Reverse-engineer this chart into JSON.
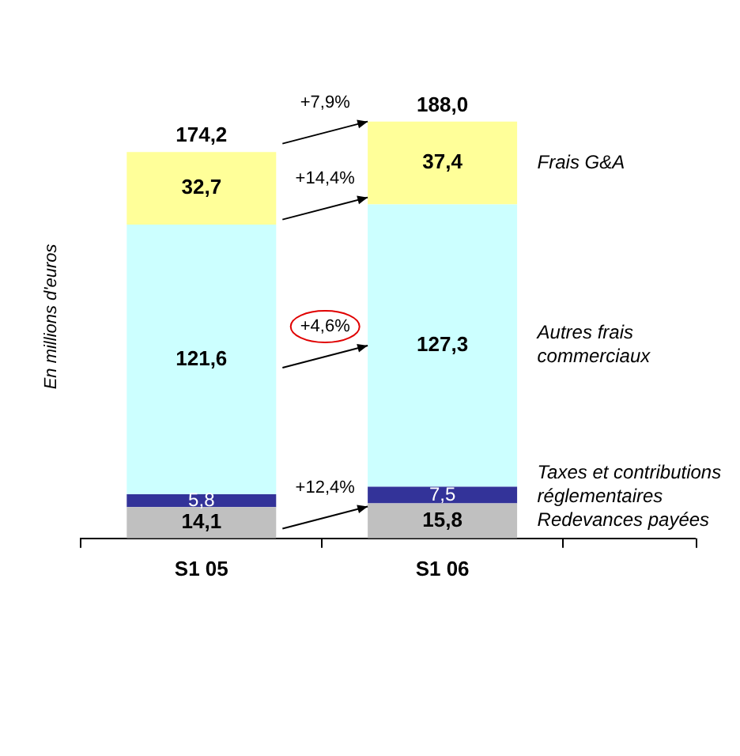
{
  "chart_data": {
    "type": "bar",
    "stacked": true,
    "ylabel": "En millions d'euros",
    "categories": [
      "S1 05",
      "S1 06"
    ],
    "series": [
      {
        "name": "Redevances payées",
        "color": "#c0c0c0",
        "values": [
          14.1,
          15.8
        ],
        "value_labels": [
          "14,1",
          "15,8"
        ]
      },
      {
        "name": "Taxes et contributions réglementaires",
        "color": "#333399",
        "values": [
          5.8,
          7.5
        ],
        "value_labels": [
          "5,8",
          "7,5"
        ]
      },
      {
        "name": "Autres frais commerciaux",
        "color": "#ccffff",
        "values": [
          121.6,
          127.3
        ],
        "value_labels": [
          "121,6",
          "127,3"
        ]
      },
      {
        "name": "Frais G&A",
        "color": "#ffff99",
        "values": [
          32.7,
          37.4
        ],
        "value_labels": [
          "32,7",
          "37,4"
        ]
      }
    ],
    "totals": [
      "174,2",
      "188,0"
    ],
    "annotations": [
      "+7,9%",
      "+14,4%",
      "+4,6%",
      "+12,4%"
    ],
    "grid": false,
    "legend": false
  }
}
